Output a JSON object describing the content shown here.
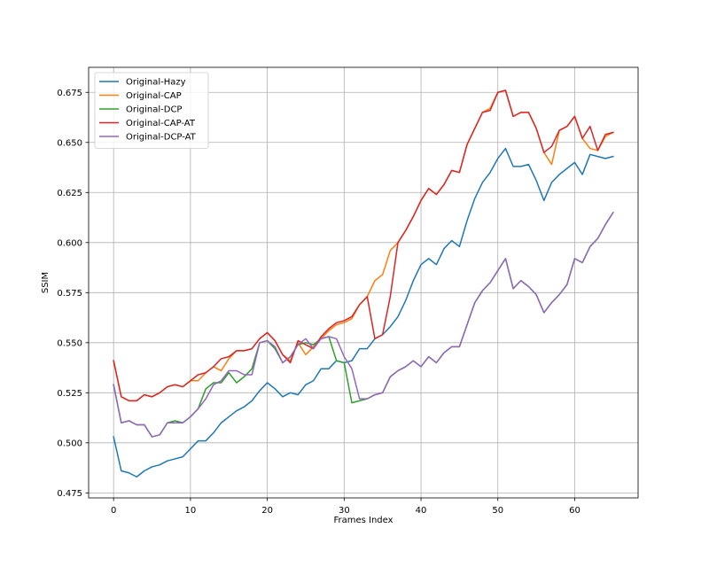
{
  "chart_data": {
    "type": "line",
    "title": "",
    "xlabel": "Frames Index",
    "ylabel": "SSIM",
    "xlim": [
      -3.25,
      68.25
    ],
    "ylim": [
      0.4725,
      0.6875
    ],
    "xticks": [
      0,
      10,
      20,
      30,
      40,
      50,
      60
    ],
    "yticks": [
      0.475,
      0.5,
      0.525,
      0.55,
      0.575,
      0.6,
      0.625,
      0.65,
      0.675
    ],
    "ytick_labels": [
      "0.475",
      "0.500",
      "0.525",
      "0.550",
      "0.575",
      "0.600",
      "0.625",
      "0.650",
      "0.675"
    ],
    "grid": true,
    "legend_position": "top-left",
    "x": [
      0,
      1,
      2,
      3,
      4,
      5,
      6,
      7,
      8,
      9,
      10,
      11,
      12,
      13,
      14,
      15,
      16,
      17,
      18,
      19,
      20,
      21,
      22,
      23,
      24,
      25,
      26,
      27,
      28,
      29,
      30,
      31,
      32,
      33,
      34,
      35,
      36,
      37,
      38,
      39,
      40,
      41,
      42,
      43,
      44,
      45,
      46,
      47,
      48,
      49,
      50,
      51,
      52,
      53,
      54,
      55,
      56,
      57,
      58,
      59,
      60,
      61,
      62,
      63,
      64,
      65
    ],
    "series": [
      {
        "name": "Original-Hazy",
        "color": "#1f77b4",
        "values": [
          0.503,
          0.486,
          0.485,
          0.483,
          0.486,
          0.488,
          0.489,
          0.491,
          0.492,
          0.493,
          0.497,
          0.501,
          0.501,
          0.505,
          0.51,
          0.513,
          0.516,
          0.518,
          0.521,
          0.526,
          0.53,
          0.527,
          0.523,
          0.525,
          0.524,
          0.529,
          0.531,
          0.537,
          0.537,
          0.541,
          0.54,
          0.541,
          0.547,
          0.547,
          0.552,
          0.554,
          0.558,
          0.563,
          0.571,
          0.581,
          0.589,
          0.592,
          0.589,
          0.597,
          0.601,
          0.598,
          0.611,
          0.622,
          0.63,
          0.635,
          0.642,
          0.647,
          0.638,
          0.638,
          0.639,
          0.631,
          0.621,
          0.63,
          0.634,
          0.637,
          0.64,
          0.634,
          0.644,
          0.643,
          0.642,
          0.643
        ]
      },
      {
        "name": "Original-CAP",
        "color": "#ff7f0e",
        "values": [
          0.541,
          0.523,
          0.521,
          0.521,
          0.524,
          0.523,
          0.525,
          0.528,
          0.529,
          0.528,
          0.531,
          0.531,
          0.535,
          0.538,
          0.536,
          0.542,
          0.546,
          0.546,
          0.547,
          0.552,
          0.555,
          0.551,
          0.544,
          0.541,
          0.55,
          0.544,
          0.548,
          0.552,
          0.556,
          0.559,
          0.56,
          0.562,
          0.569,
          0.573,
          0.581,
          0.584,
          0.596,
          0.6,
          0.606,
          0.613,
          0.621,
          0.627,
          0.624,
          0.629,
          0.636,
          0.635,
          0.649,
          0.657,
          0.665,
          0.667,
          0.675,
          0.676,
          0.663,
          0.665,
          0.665,
          0.657,
          0.645,
          0.639,
          0.656,
          0.658,
          0.663,
          0.652,
          0.647,
          0.646,
          0.653,
          0.655
        ]
      },
      {
        "name": "Original-DCP",
        "color": "#2ca02c",
        "values": [
          0.529,
          0.51,
          0.511,
          0.509,
          0.509,
          0.503,
          0.504,
          0.51,
          0.511,
          0.51,
          0.513,
          0.517,
          0.527,
          0.53,
          0.53,
          0.535,
          0.53,
          0.533,
          0.537,
          0.55,
          0.551,
          0.547,
          0.54,
          0.543,
          0.549,
          0.55,
          0.549,
          0.552,
          0.553,
          0.541,
          0.54,
          0.52,
          0.521,
          0.522,
          0.524,
          0.525,
          0.533,
          0.536,
          0.538,
          0.541,
          0.538,
          0.543,
          0.54,
          0.545,
          0.548,
          0.548,
          0.559,
          0.57,
          0.576,
          0.58,
          0.586,
          0.592,
          0.577,
          0.581,
          0.578,
          0.574,
          0.565,
          0.57,
          0.574,
          0.579,
          0.592,
          0.59,
          0.598,
          0.602,
          0.609,
          0.615
        ]
      },
      {
        "name": "Original-CAP-AT",
        "color": "#d62728",
        "values": [
          0.541,
          0.523,
          0.521,
          0.521,
          0.524,
          0.523,
          0.525,
          0.528,
          0.529,
          0.528,
          0.531,
          0.534,
          0.535,
          0.538,
          0.542,
          0.543,
          0.546,
          0.546,
          0.547,
          0.552,
          0.555,
          0.551,
          0.544,
          0.54,
          0.551,
          0.549,
          0.547,
          0.553,
          0.557,
          0.56,
          0.561,
          0.563,
          0.569,
          0.573,
          0.552,
          0.554,
          0.573,
          0.6,
          0.606,
          0.613,
          0.621,
          0.627,
          0.624,
          0.629,
          0.636,
          0.635,
          0.649,
          0.657,
          0.665,
          0.666,
          0.675,
          0.676,
          0.663,
          0.665,
          0.665,
          0.657,
          0.645,
          0.648,
          0.656,
          0.658,
          0.663,
          0.652,
          0.658,
          0.646,
          0.654,
          0.655
        ]
      },
      {
        "name": "Original-DCP-AT",
        "color": "#9467bd",
        "values": [
          0.529,
          0.51,
          0.511,
          0.509,
          0.509,
          0.503,
          0.504,
          0.51,
          0.51,
          0.51,
          0.513,
          0.517,
          0.522,
          0.529,
          0.531,
          0.536,
          0.536,
          0.534,
          0.534,
          0.55,
          0.551,
          0.548,
          0.54,
          0.543,
          0.549,
          0.552,
          0.547,
          0.552,
          0.553,
          0.552,
          0.543,
          0.537,
          0.522,
          0.522,
          0.524,
          0.525,
          0.533,
          0.536,
          0.538,
          0.541,
          0.538,
          0.543,
          0.54,
          0.545,
          0.548,
          0.548,
          0.559,
          0.57,
          0.576,
          0.58,
          0.586,
          0.592,
          0.577,
          0.581,
          0.578,
          0.574,
          0.565,
          0.57,
          0.574,
          0.579,
          0.592,
          0.59,
          0.598,
          0.602,
          0.609,
          0.615
        ]
      }
    ]
  }
}
